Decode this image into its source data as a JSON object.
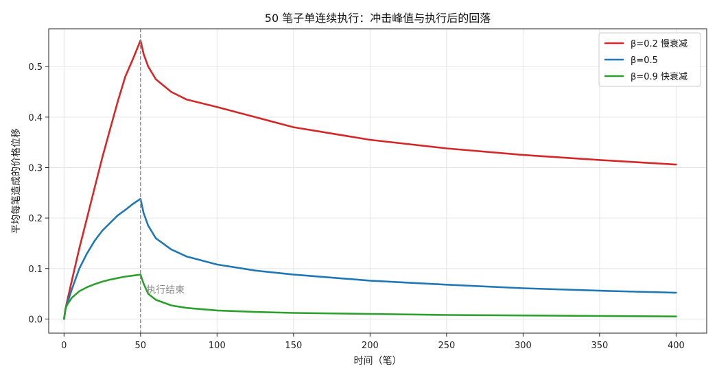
{
  "chart_data": {
    "type": "line",
    "title": "50 笔子单连续执行：冲击峰值与执行后的回落",
    "xlabel": "时间（笔）",
    "ylabel": "平均每笔造成的价格位移",
    "xlim": [
      -10,
      420
    ],
    "ylim": [
      -0.028,
      0.575
    ],
    "x_ticks": [
      0,
      50,
      100,
      150,
      200,
      250,
      300,
      350,
      400
    ],
    "y_ticks": [
      0.0,
      0.1,
      0.2,
      0.3,
      0.4,
      0.5
    ],
    "y_tick_labels": [
      "0.0",
      "0.1",
      "0.2",
      "0.3",
      "0.4",
      "0.5"
    ],
    "grid": true,
    "legend_position": "top-right",
    "vline": {
      "x": 50,
      "color": "#888888",
      "style": "dashed"
    },
    "annotation": {
      "text": "执行结束",
      "x": 52,
      "y": 0.03
    },
    "series": [
      {
        "name": "β=0.2 慢衰减",
        "color": "#d62728",
        "x": [
          0,
          1,
          2,
          5,
          10,
          15,
          20,
          25,
          30,
          35,
          40,
          45,
          50,
          52,
          55,
          60,
          70,
          80,
          100,
          125,
          150,
          200,
          250,
          300,
          350,
          400
        ],
        "y": [
          0.0,
          0.02,
          0.035,
          0.075,
          0.14,
          0.2,
          0.26,
          0.32,
          0.375,
          0.43,
          0.48,
          0.515,
          0.552,
          0.525,
          0.5,
          0.475,
          0.45,
          0.435,
          0.42,
          0.4,
          0.38,
          0.355,
          0.338,
          0.325,
          0.315,
          0.306
        ]
      },
      {
        "name": "β=0.5",
        "color": "#1f77b4",
        "x": [
          0,
          1,
          2,
          5,
          10,
          15,
          20,
          25,
          30,
          35,
          40,
          45,
          50,
          52,
          55,
          60,
          70,
          80,
          100,
          125,
          150,
          200,
          250,
          300,
          350,
          400
        ],
        "y": [
          0.0,
          0.02,
          0.03,
          0.058,
          0.1,
          0.13,
          0.155,
          0.175,
          0.19,
          0.205,
          0.216,
          0.228,
          0.238,
          0.21,
          0.185,
          0.16,
          0.138,
          0.124,
          0.108,
          0.096,
          0.088,
          0.076,
          0.068,
          0.061,
          0.056,
          0.052
        ]
      },
      {
        "name": "β=0.9 快衰减",
        "color": "#2ca02c",
        "x": [
          0,
          1,
          2,
          5,
          10,
          15,
          20,
          25,
          30,
          35,
          40,
          45,
          50,
          52,
          55,
          60,
          70,
          80,
          100,
          125,
          150,
          200,
          250,
          300,
          350,
          400
        ],
        "y": [
          0.0,
          0.02,
          0.028,
          0.042,
          0.055,
          0.063,
          0.069,
          0.074,
          0.078,
          0.081,
          0.084,
          0.086,
          0.088,
          0.07,
          0.05,
          0.038,
          0.027,
          0.022,
          0.017,
          0.014,
          0.012,
          0.01,
          0.008,
          0.007,
          0.006,
          0.005
        ]
      }
    ]
  }
}
